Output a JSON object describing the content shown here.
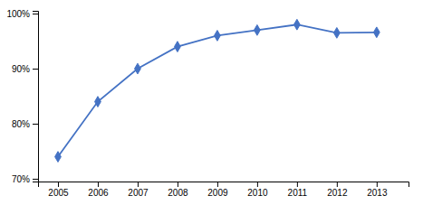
{
  "chart_data": {
    "type": "line",
    "x": [
      2005,
      2006,
      2007,
      2008,
      2009,
      2010,
      2011,
      2012,
      2013
    ],
    "values": [
      0.74,
      0.84,
      0.9,
      0.94,
      0.96,
      0.97,
      0.98,
      0.965,
      0.966
    ],
    "color": "#4472c4",
    "marker": "diamond",
    "xlim": [
      2004.5,
      2013.8
    ],
    "xticks": [
      2005,
      2006,
      2007,
      2008,
      2009,
      2010,
      2011,
      2012,
      2013
    ],
    "ylim": [
      0.695,
      1.005
    ],
    "yticks": [
      {
        "value": 0.7,
        "label": "70%"
      },
      {
        "value": 0.8,
        "label": "80%"
      },
      {
        "value": 0.9,
        "label": "90%"
      },
      {
        "value": 1.0,
        "label": "100%"
      }
    ],
    "grid": false
  }
}
